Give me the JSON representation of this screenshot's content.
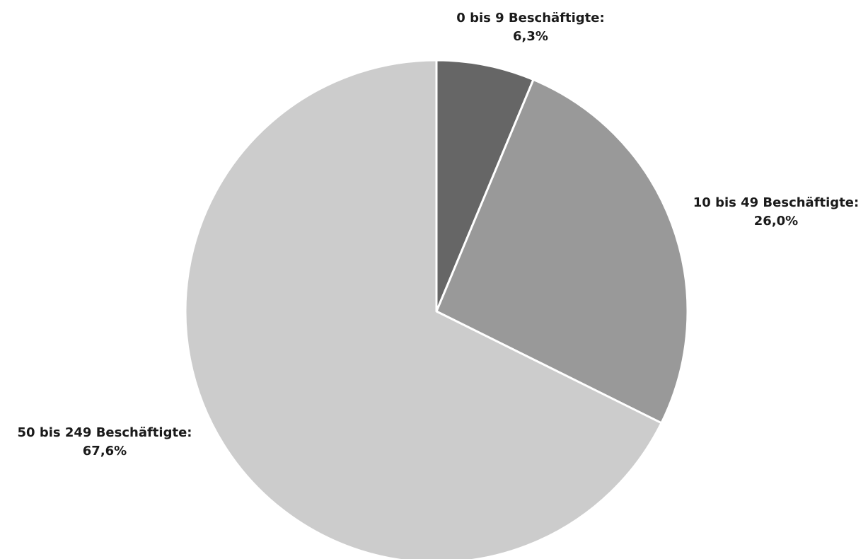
{
  "chart_data": {
    "type": "pie",
    "title": "",
    "start": "top",
    "direction": "clockwise",
    "slices": [
      {
        "label": "0 bis 9 Beschäftigte:",
        "value": 6.3,
        "value_label": "6,3%",
        "color": "#666666"
      },
      {
        "label": "10 bis 49 Beschäftigte:",
        "value": 26.0,
        "value_label": "26,0%",
        "color": "#999999"
      },
      {
        "label": "50 bis 249 Beschäftigte:",
        "value": 67.6,
        "value_label": "67,6%",
        "color": "#cccccc"
      }
    ],
    "separator_color": "#ffffff",
    "legend": "none"
  }
}
